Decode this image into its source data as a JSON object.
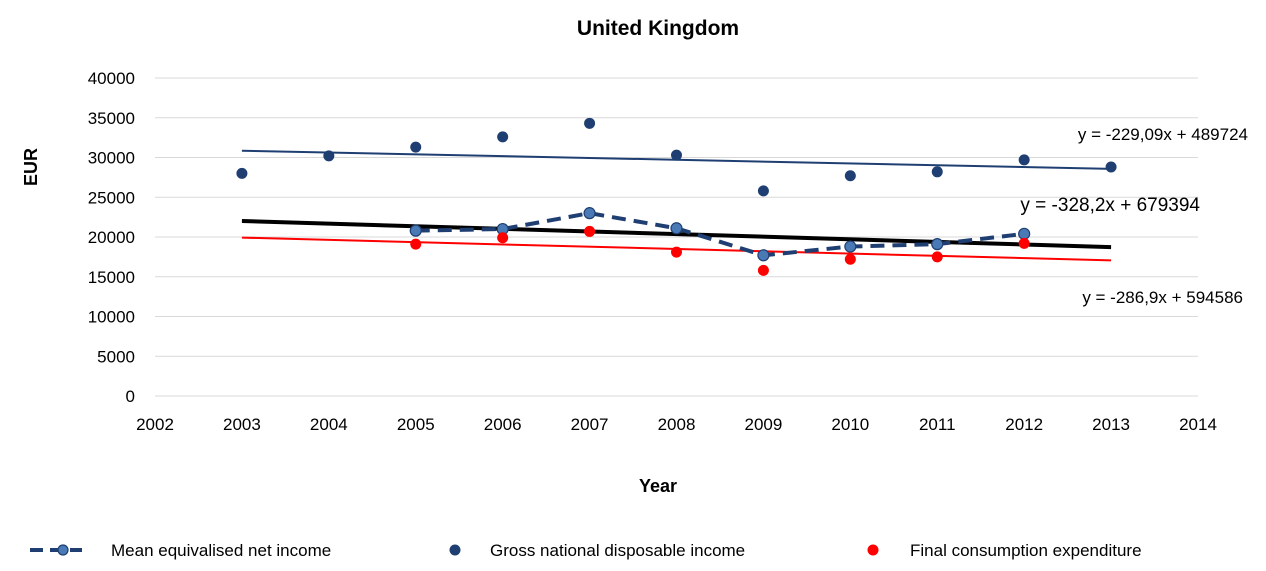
{
  "chart_data": {
    "type": "scatter",
    "title": "United Kingdom",
    "xlabel": "Year",
    "ylabel": "EUR",
    "xlim": [
      2002,
      2014
    ],
    "ylim": [
      0,
      40000
    ],
    "x_ticks": [
      2002,
      2003,
      2004,
      2005,
      2006,
      2007,
      2008,
      2009,
      2010,
      2011,
      2012,
      2013,
      2014
    ],
    "y_ticks": [
      0,
      5000,
      10000,
      15000,
      20000,
      25000,
      30000,
      35000,
      40000
    ],
    "grid": "horizontal",
    "legend_position": "bottom",
    "series": [
      {
        "name": "Mean equivalised net income",
        "style": "dashed-line-markers",
        "color": "#1f3f72",
        "marker_color": "#4a7ab5",
        "x": [
          2005,
          2006,
          2007,
          2008,
          2009,
          2010,
          2011,
          2012
        ],
        "values": [
          20800,
          21000,
          23000,
          21100,
          17700,
          18800,
          19100,
          20400
        ]
      },
      {
        "name": "Gross national disposable income",
        "style": "markers",
        "color": "#1f3f72",
        "x": [
          2003,
          2004,
          2005,
          2006,
          2007,
          2008,
          2009,
          2010,
          2011,
          2012,
          2013
        ],
        "values": [
          28000,
          30200,
          31300,
          32600,
          34300,
          30300,
          25800,
          27700,
          28200,
          29700,
          28800
        ]
      },
      {
        "name": "Final consumption expenditure",
        "style": "markers",
        "color": "#ff0000",
        "x": [
          2005,
          2006,
          2007,
          2008,
          2009,
          2010,
          2011,
          2012
        ],
        "values": [
          19100,
          19900,
          20700,
          18100,
          15800,
          17200,
          17500,
          19200
        ]
      }
    ],
    "trendlines": [
      {
        "color": "#1f3f72",
        "width": "thin",
        "x_range": [
          2003,
          2013
        ],
        "slope": -229.09,
        "intercept": 489724,
        "equation": "y = -229,09x + 489724"
      },
      {
        "color": "#000000",
        "width": "thick",
        "x_range": [
          2003,
          2013
        ],
        "slope": -328.2,
        "intercept": 679394,
        "equation": "y = -328,2x + 679394"
      },
      {
        "color": "#ff0000",
        "width": "thin",
        "x_range": [
          2003,
          2013
        ],
        "slope": -286.9,
        "intercept": 594586,
        "equation": "y = -286,9x + 594586"
      }
    ]
  }
}
